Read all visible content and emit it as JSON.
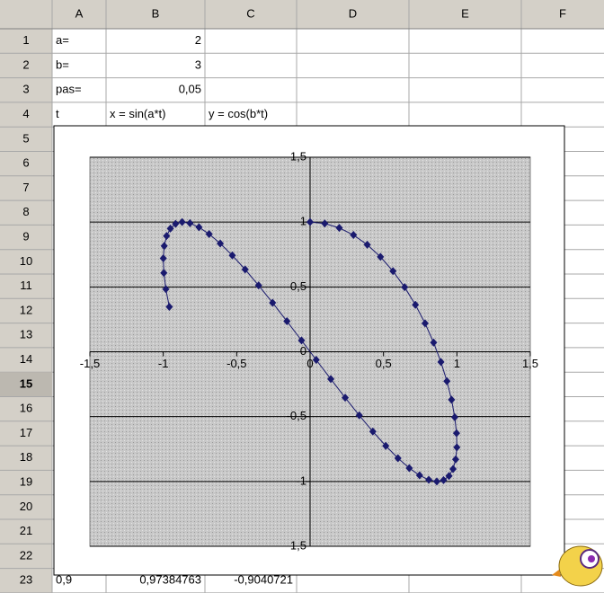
{
  "spreadsheet": {
    "columns": [
      "A",
      "B",
      "C",
      "D",
      "E",
      "F"
    ],
    "rows": [
      "1",
      "2",
      "3",
      "4",
      "5",
      "6",
      "7",
      "8",
      "9",
      "10",
      "11",
      "12",
      "13",
      "14",
      "15",
      "16",
      "17",
      "18",
      "19",
      "20",
      "21",
      "22",
      "23"
    ],
    "selected_row": "15",
    "cells": [
      {
        "row": 1,
        "col": 0,
        "text": "a="
      },
      {
        "row": 1,
        "col": 1,
        "text": "2"
      },
      {
        "row": 2,
        "col": 0,
        "text": "b="
      },
      {
        "row": 2,
        "col": 1,
        "text": "3"
      },
      {
        "row": 3,
        "col": 0,
        "text": "pas="
      },
      {
        "row": 3,
        "col": 1,
        "text": "0,05"
      },
      {
        "row": 4,
        "col": 0,
        "text": "t"
      },
      {
        "row": 4,
        "col": 1,
        "text": "x = sin(a*t)"
      },
      {
        "row": 4,
        "col": 2,
        "text": "y = cos(b*t)"
      },
      {
        "row": 23,
        "col": 0,
        "text": "0,9"
      },
      {
        "row": 23,
        "col": 1,
        "text": "0,97384763"
      },
      {
        "row": 23,
        "col": 2,
        "text": "-0,9040721"
      }
    ]
  },
  "chart_data": {
    "type": "scatter-line",
    "grid": true,
    "color": "#1a1a6e",
    "x": [
      0,
      0.0998,
      0.1987,
      0.2955,
      0.3894,
      0.4794,
      0.5646,
      0.6442,
      0.7174,
      0.7833,
      0.8415,
      0.8912,
      0.932,
      0.9636,
      0.9854,
      0.9975,
      0.9996,
      0.9917,
      0.9738,
      0.9463,
      0.9093,
      0.8632,
      0.8085,
      0.7457,
      0.6755,
      0.5985,
      0.5155,
      0.4274,
      0.335,
      0.2392,
      0.1411,
      0.0416,
      -0.0584,
      -0.1577,
      -0.2555,
      -0.3508,
      -0.4425,
      -0.5298,
      -0.6119,
      -0.6878,
      -0.7568,
      -0.8183,
      -0.8716,
      -0.9162,
      -0.9516,
      -0.9775,
      -0.9937,
      -0.9999,
      -0.9962,
      -0.9825,
      -0.9589
    ],
    "values": [
      1,
      0.9888,
      0.9553,
      0.9004,
      0.8253,
      0.7317,
      0.6216,
      0.4976,
      0.3624,
      0.219,
      0.0707,
      -0.0792,
      -0.2272,
      -0.3702,
      -0.5048,
      -0.6282,
      -0.7374,
      -0.8301,
      -0.9041,
      -0.9578,
      -0.99,
      -1,
      -0.9875,
      -0.9528,
      -0.8968,
      -0.8206,
      -0.7259,
      -0.615,
      -0.4903,
      -0.3545,
      -0.2108,
      -0.0624,
      0.0875,
      0.2353,
      0.378,
      0.5117,
      0.6347,
      0.7431,
      0.8347,
      0.9074,
      0.9602,
      0.9915,
      1,
      0.9862,
      0.9502,
      0.893,
      0.8157,
      0.7203,
      0.6084,
      0.4833,
      0.3466
    ],
    "xlim": [
      -1.5,
      1.5
    ],
    "ylim": [
      -1.5,
      1.5
    ],
    "xticks": [
      {
        "value": -1.5,
        "label": "-1,5"
      },
      -1,
      {
        "value": -0.5,
        "label": "-0,5"
      },
      0,
      {
        "value": 0.5,
        "label": "0,5"
      },
      1,
      {
        "value": 1.5,
        "label": "1,5"
      }
    ],
    "yticks": [
      {
        "value": -1.5,
        "label": "-1,5"
      },
      -1,
      {
        "value": -0.5,
        "label": "-0,5"
      },
      0,
      {
        "value": 0.5,
        "label": "0,5"
      },
      1,
      {
        "value": 1.5,
        "label": "1,5"
      }
    ]
  }
}
